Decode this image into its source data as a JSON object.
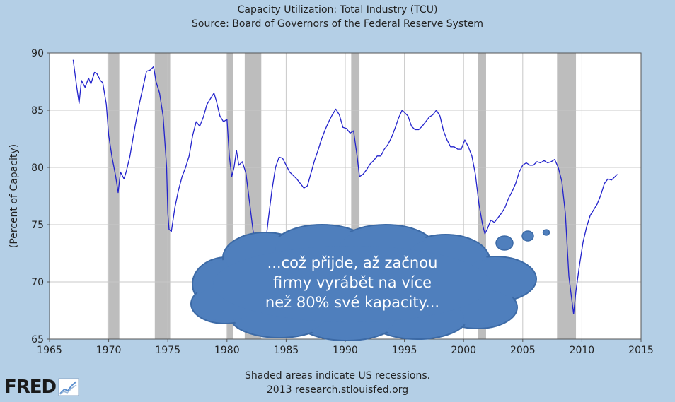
{
  "header": {
    "title": "Capacity Utilization: Total Industry (TCU)",
    "source": "Source: Board of Governors of the Federal Reserve System"
  },
  "footer": {
    "note": "Shaded areas indicate US recessions.",
    "credit": "2013 research.stlouisfed.org"
  },
  "logo": {
    "text": "FRED"
  },
  "annotation": {
    "lines": [
      "...což přijde, až začnou",
      "firmy vyrábět na více",
      "než 80% své kapacity..."
    ]
  },
  "colors": {
    "background": "#b4cfe6",
    "plot": "#ffffff",
    "line": "#2222cc",
    "recession": "#bdbdbd",
    "bubble_fill": "#4f7fbd",
    "bubble_stroke": "#3c6aa6"
  },
  "chart_data": {
    "type": "line",
    "ylabel": "(Percent of Capacity)",
    "xlim": [
      1965,
      2015
    ],
    "ylim": [
      65,
      90
    ],
    "xticks": [
      1965,
      1970,
      1975,
      1980,
      1985,
      1990,
      1995,
      2000,
      2005,
      2010,
      2015
    ],
    "yticks": [
      65,
      70,
      75,
      80,
      85,
      90
    ],
    "grid": true,
    "recessions": [
      [
        1969.9,
        1970.9
      ],
      [
        1973.9,
        1975.2
      ],
      [
        1980.0,
        1980.5
      ],
      [
        1981.5,
        1982.9
      ],
      [
        1990.5,
        1991.2
      ],
      [
        2001.2,
        2001.9
      ],
      [
        2007.9,
        2009.5
      ]
    ],
    "series": [
      {
        "x": [
          1967.0,
          1967.3,
          1967.5,
          1967.7,
          1968.0,
          1968.3,
          1968.5,
          1968.8,
          1969.0,
          1969.3,
          1969.5,
          1969.8,
          1970.0,
          1970.3,
          1970.6,
          1970.8,
          1971.0,
          1971.3,
          1971.5,
          1971.8,
          1972.0,
          1972.3,
          1972.6,
          1972.9,
          1973.2,
          1973.5,
          1973.8,
          1974.0,
          1974.3,
          1974.6,
          1974.9,
          1975.0,
          1975.1,
          1975.3,
          1975.6,
          1975.9,
          1976.2,
          1976.5,
          1976.8,
          1977.1,
          1977.4,
          1977.7,
          1978.0,
          1978.3,
          1978.6,
          1978.9,
          1979.1,
          1979.4,
          1979.7,
          1980.0,
          1980.2,
          1980.4,
          1980.6,
          1980.8,
          1981.0,
          1981.3,
          1981.6,
          1981.9,
          1982.2,
          1982.5,
          1982.8,
          1982.95,
          1983.2,
          1983.5,
          1983.8,
          1984.1,
          1984.4,
          1984.7,
          1985.0,
          1985.3,
          1985.6,
          1985.9,
          1986.2,
          1986.5,
          1986.8,
          1987.1,
          1987.4,
          1987.7,
          1988.0,
          1988.3,
          1988.6,
          1988.9,
          1989.2,
          1989.5,
          1989.8,
          1990.1,
          1990.4,
          1990.7,
          1991.0,
          1991.2,
          1991.5,
          1991.8,
          1992.1,
          1992.4,
          1992.7,
          1993.0,
          1993.3,
          1993.6,
          1993.9,
          1994.2,
          1994.5,
          1994.8,
          1995.0,
          1995.3,
          1995.6,
          1995.9,
          1996.2,
          1996.5,
          1996.8,
          1997.1,
          1997.4,
          1997.7,
          1998.0,
          1998.3,
          1998.6,
          1998.9,
          1999.2,
          1999.5,
          1999.8,
          2000.1,
          2000.4,
          2000.7,
          2001.0,
          2001.3,
          2001.6,
          2001.8,
          2002.0,
          2002.3,
          2002.6,
          2002.9,
          2003.2,
          2003.5,
          2003.8,
          2004.1,
          2004.4,
          2004.7,
          2005.0,
          2005.3,
          2005.6,
          2005.9,
          2006.2,
          2006.5,
          2006.8,
          2007.1,
          2007.4,
          2007.7,
          2008.0,
          2008.3,
          2008.6,
          2008.9,
          2009.1,
          2009.3,
          2009.5,
          2009.8,
          2010.1,
          2010.4,
          2010.7,
          2011.0,
          2011.3,
          2011.6,
          2011.9,
          2012.2,
          2012.5,
          2012.8,
          2013.0
        ],
        "y": [
          89.4,
          87.0,
          85.6,
          87.6,
          87.0,
          87.8,
          87.3,
          88.3,
          88.2,
          87.6,
          87.4,
          85.5,
          82.8,
          80.8,
          79.2,
          77.8,
          79.6,
          79.0,
          79.7,
          81.0,
          82.2,
          84.0,
          85.6,
          87.0,
          88.4,
          88.5,
          88.8,
          87.5,
          86.5,
          84.5,
          80.0,
          76.0,
          74.6,
          74.4,
          76.5,
          78.0,
          79.2,
          80.0,
          81.0,
          82.8,
          84.0,
          83.6,
          84.4,
          85.5,
          86.0,
          86.5,
          85.8,
          84.5,
          84.0,
          84.2,
          81.0,
          79.2,
          80.0,
          81.5,
          80.2,
          80.5,
          79.5,
          77.0,
          74.5,
          73.0,
          71.5,
          71.0,
          72.8,
          75.5,
          78.0,
          80.0,
          80.9,
          80.8,
          80.2,
          79.6,
          79.3,
          79.0,
          78.6,
          78.2,
          78.4,
          79.5,
          80.6,
          81.5,
          82.5,
          83.3,
          84.0,
          84.6,
          85.1,
          84.6,
          83.5,
          83.4,
          83.0,
          83.2,
          81.0,
          79.2,
          79.4,
          79.8,
          80.3,
          80.6,
          81.0,
          81.0,
          81.6,
          82.0,
          82.6,
          83.4,
          84.3,
          85.0,
          84.8,
          84.5,
          83.6,
          83.3,
          83.3,
          83.6,
          84.0,
          84.4,
          84.6,
          85.0,
          84.5,
          83.2,
          82.4,
          81.8,
          81.8,
          81.6,
          81.6,
          82.4,
          81.8,
          81.0,
          79.4,
          76.8,
          75.0,
          74.2,
          74.6,
          75.4,
          75.2,
          75.6,
          76.0,
          76.5,
          77.3,
          77.9,
          78.6,
          79.6,
          80.2,
          80.4,
          80.2,
          80.2,
          80.5,
          80.4,
          80.6,
          80.4,
          80.5,
          80.7,
          80.0,
          78.8,
          76.0,
          70.5,
          68.8,
          67.2,
          69.2,
          71.5,
          73.5,
          74.8,
          75.8,
          76.3,
          76.8,
          77.6,
          78.6,
          79.0,
          78.9,
          79.2,
          79.4
        ]
      }
    ]
  }
}
